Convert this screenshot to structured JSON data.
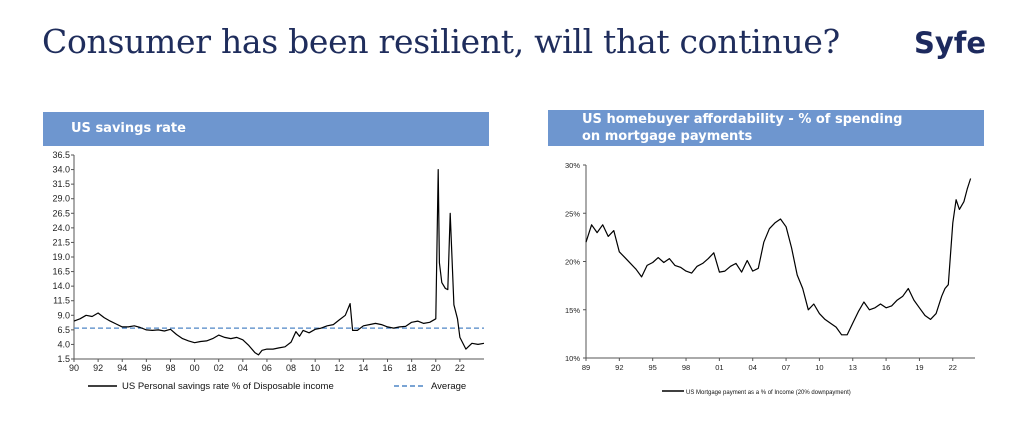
{
  "slide": {
    "title": "Consumer has been resilient, will that continue?",
    "brand": "Syfe"
  },
  "colors": {
    "title": "#1f2d5c",
    "header_bg": "#6e96cf",
    "series_line": "#000000",
    "average_line": "#4f86c6"
  },
  "chart_data": [
    {
      "type": "line",
      "title": "US savings rate",
      "x_ticks": [
        "90",
        "92",
        "94",
        "96",
        "98",
        "00",
        "02",
        "04",
        "06",
        "08",
        "10",
        "12",
        "14",
        "16",
        "18",
        "20",
        "22"
      ],
      "xlim": [
        1990,
        2024
      ],
      "ylim": [
        1.5,
        36.5
      ],
      "y_ticks": [
        "1.5",
        "4.0",
        "6.5",
        "9.0",
        "11.5",
        "14.0",
        "16.5",
        "19.0",
        "21.5",
        "24.0",
        "26.5",
        "29.0",
        "31.5",
        "34.0",
        "36.5"
      ],
      "average": 6.8,
      "legend": {
        "placement": "bottom",
        "series_label": "US Personal savings rate % of Disposable income",
        "average_label": "Average"
      },
      "series": [
        {
          "x": [
            1990,
            1990.5,
            1991,
            1991.5,
            1992,
            1992.5,
            1993,
            1993.5,
            1994,
            1994.5,
            1995,
            1995.5,
            1996,
            1996.5,
            1997,
            1997.5,
            1998,
            1998.5,
            1999,
            1999.5,
            2000,
            2000.5,
            2001,
            2001.5,
            2002,
            2002.5,
            2003,
            2003.5,
            2004,
            2004.5,
            2005,
            2005.3,
            2005.6,
            2006,
            2006.5,
            2007,
            2007.5,
            2008,
            2008.4,
            2008.7,
            2009,
            2009.5,
            2010,
            2010.5,
            2011,
            2011.5,
            2012,
            2012.5,
            2012.9,
            2013.1,
            2013.5,
            2014,
            2014.5,
            2015,
            2015.5,
            2016,
            2016.5,
            2017,
            2017.5,
            2018,
            2018.5,
            2019,
            2019.5,
            2020,
            2020.2,
            2020.3,
            2020.5,
            2020.8,
            2021,
            2021.2,
            2021.5,
            2021.8,
            2022,
            2022.5,
            2023,
            2023.5,
            2024
          ],
          "y": [
            8.0,
            8.4,
            9.0,
            8.8,
            9.4,
            8.6,
            8.0,
            7.5,
            7.0,
            7.0,
            7.2,
            6.9,
            6.5,
            6.4,
            6.5,
            6.3,
            6.6,
            5.7,
            5.0,
            4.6,
            4.3,
            4.5,
            4.6,
            5.0,
            5.6,
            5.2,
            5.0,
            5.2,
            4.8,
            3.8,
            2.6,
            2.2,
            3.0,
            3.2,
            3.2,
            3.4,
            3.6,
            4.4,
            6.2,
            5.4,
            6.4,
            6.0,
            6.6,
            6.8,
            7.2,
            7.4,
            8.2,
            9.0,
            11.0,
            6.4,
            6.4,
            7.2,
            7.4,
            7.6,
            7.4,
            7.0,
            6.8,
            7.0,
            7.1,
            7.8,
            8.0,
            7.6,
            7.8,
            8.4,
            34.0,
            18.0,
            14.6,
            13.6,
            13.4,
            26.5,
            10.8,
            8.4,
            5.2,
            3.2,
            4.2,
            4.0,
            4.2
          ]
        }
      ]
    },
    {
      "type": "line",
      "title": "US homebuyer affordability - % of spending on mortgage payments",
      "x_ticks": [
        "89",
        "92",
        "95",
        "98",
        "01",
        "04",
        "07",
        "10",
        "13",
        "16",
        "19",
        "22"
      ],
      "xlim": [
        1989,
        2024
      ],
      "ylim": [
        10,
        30
      ],
      "y_ticks": [
        "10%",
        "15%",
        "20%",
        "25%",
        "30%"
      ],
      "legend": {
        "placement": "bottom",
        "series_label": "US Mortgage payment as a % of Income (20% downpayment)"
      },
      "series": [
        {
          "x": [
            1989,
            1989.5,
            1990,
            1990.5,
            1991,
            1991.5,
            1992,
            1992.5,
            1993,
            1993.5,
            1994,
            1994.5,
            1995,
            1995.5,
            1996,
            1996.5,
            1997,
            1997.5,
            1998,
            1998.5,
            1999,
            1999.5,
            2000,
            2000.5,
            2001,
            2001.5,
            2002,
            2002.5,
            2003,
            2003.5,
            2004,
            2004.5,
            2005,
            2005.5,
            2006,
            2006.5,
            2007,
            2007.5,
            2008,
            2008.5,
            2009,
            2009.5,
            2010,
            2010.5,
            2011,
            2011.5,
            2012,
            2012.5,
            2013,
            2013.5,
            2014,
            2014.5,
            2015,
            2015.5,
            2016,
            2016.5,
            2017,
            2017.5,
            2018,
            2018.5,
            2019,
            2019.5,
            2020,
            2020.5,
            2021,
            2021.3,
            2021.6,
            2022,
            2022.3,
            2022.6,
            2023,
            2023.3,
            2023.6
          ],
          "y": [
            22.0,
            23.8,
            23.0,
            23.8,
            22.6,
            23.2,
            21.0,
            20.4,
            19.8,
            19.2,
            18.4,
            19.6,
            19.9,
            20.4,
            19.9,
            20.3,
            19.6,
            19.4,
            19.0,
            18.8,
            19.5,
            19.8,
            20.3,
            20.9,
            18.9,
            19.0,
            19.5,
            19.8,
            18.9,
            20.1,
            19.0,
            19.3,
            22.0,
            23.4,
            24.0,
            24.4,
            23.6,
            21.4,
            18.6,
            17.2,
            15.0,
            15.6,
            14.6,
            14.0,
            13.6,
            13.2,
            12.4,
            12.4,
            13.6,
            14.8,
            15.8,
            15.0,
            15.2,
            15.6,
            15.2,
            15.4,
            16.0,
            16.4,
            17.2,
            16.0,
            15.2,
            14.4,
            14.0,
            14.6,
            16.4,
            17.2,
            17.6,
            24.0,
            26.4,
            25.4,
            26.2,
            27.5,
            28.6
          ]
        }
      ]
    }
  ]
}
